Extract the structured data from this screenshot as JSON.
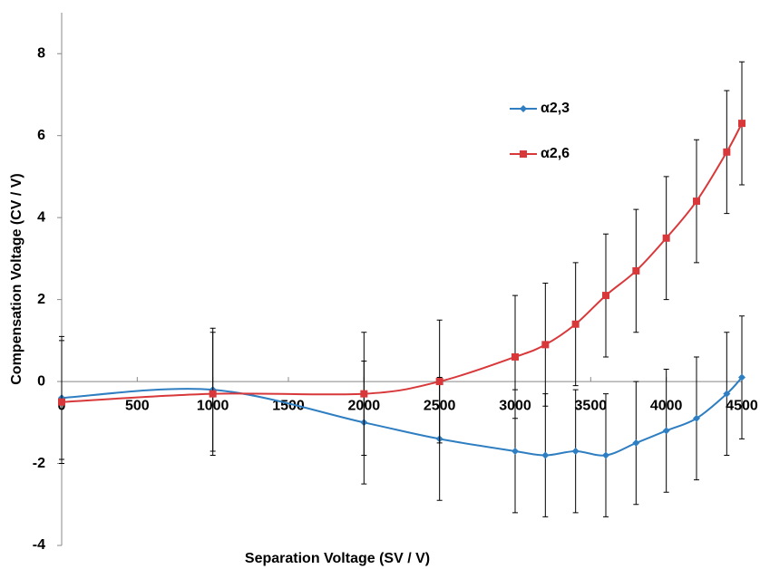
{
  "chart_data": {
    "type": "line",
    "xlabel": "Separation Voltage (SV / V)",
    "ylabel": "Compensation Voltage (CV / V)",
    "x": [
      0,
      1000,
      2000,
      2500,
      3000,
      3200,
      3400,
      3600,
      3800,
      4000,
      4200,
      4400,
      4500
    ],
    "series": [
      {
        "name": "α2,3",
        "color": "#2e7ec1",
        "marker": "diamond",
        "values": [
          -0.4,
          -0.2,
          -1.0,
          -1.4,
          -1.7,
          -1.8,
          -1.7,
          -1.8,
          -1.5,
          -1.2,
          -0.9,
          -0.3,
          0.1
        ],
        "errors": [
          1.5,
          1.5,
          1.5,
          1.5,
          1.5,
          1.5,
          1.5,
          1.5,
          1.5,
          1.5,
          1.5,
          1.5,
          1.5
        ]
      },
      {
        "name": "α2,6",
        "color": "#d9383a",
        "marker": "square",
        "values": [
          -0.5,
          -0.3,
          -0.3,
          0,
          0.6,
          0.9,
          1.4,
          2.1,
          2.7,
          3.5,
          4.4,
          5.6,
          6.3
        ],
        "errors": [
          1.5,
          1.5,
          1.5,
          1.5,
          1.5,
          1.5,
          1.5,
          1.5,
          1.5,
          1.5,
          1.5,
          1.5,
          1.5
        ]
      }
    ],
    "xlim": [
      0,
      4500
    ],
    "xticks": [
      0,
      500,
      1000,
      1500,
      2000,
      2500,
      3000,
      3500,
      4000,
      4500
    ],
    "ylim": [
      -4,
      9
    ],
    "yticks": [
      -4,
      -2,
      0,
      2,
      4,
      6,
      8
    ],
    "smooth": true,
    "legend": "upper right"
  }
}
